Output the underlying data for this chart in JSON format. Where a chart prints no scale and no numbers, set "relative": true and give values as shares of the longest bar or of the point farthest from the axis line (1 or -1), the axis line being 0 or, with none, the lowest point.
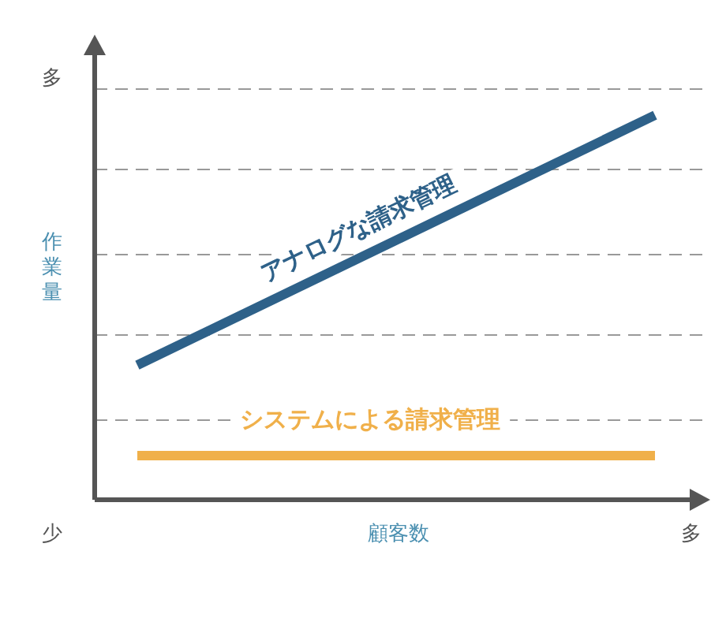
{
  "chart_data": {
    "type": "line",
    "xlabel": "顧客数",
    "ylabel": "作業量",
    "relative": true,
    "legend": false,
    "marker": "none",
    "line_style": "solid",
    "categories": [
      null,
      null
    ],
    "series": [
      {
        "name": "アナログな請求管理",
        "color": "#2e6189",
        "values": [
          0.35,
          1
        ]
      },
      {
        "name": "システムによる請求管理",
        "color": "#f0b04a",
        "values": [
          0.115,
          0.115
        ]
      }
    ],
    "ref_lines": [
      {
        "axis": "y",
        "value": 0.21,
        "color": "#999999",
        "line_style": "dashed"
      },
      {
        "axis": "y",
        "value": 0.43,
        "color": "#999999",
        "line_style": "dashed"
      },
      {
        "axis": "y",
        "value": 0.64,
        "color": "#999999",
        "line_style": "dashed"
      },
      {
        "axis": "y",
        "value": 0.86,
        "color": "#999999",
        "line_style": "dashed"
      },
      {
        "axis": "y",
        "value": 1.07,
        "color": "#999999",
        "line_style": "dashed"
      }
    ],
    "annotations": [
      "多",
      "少",
      "多"
    ]
  }
}
